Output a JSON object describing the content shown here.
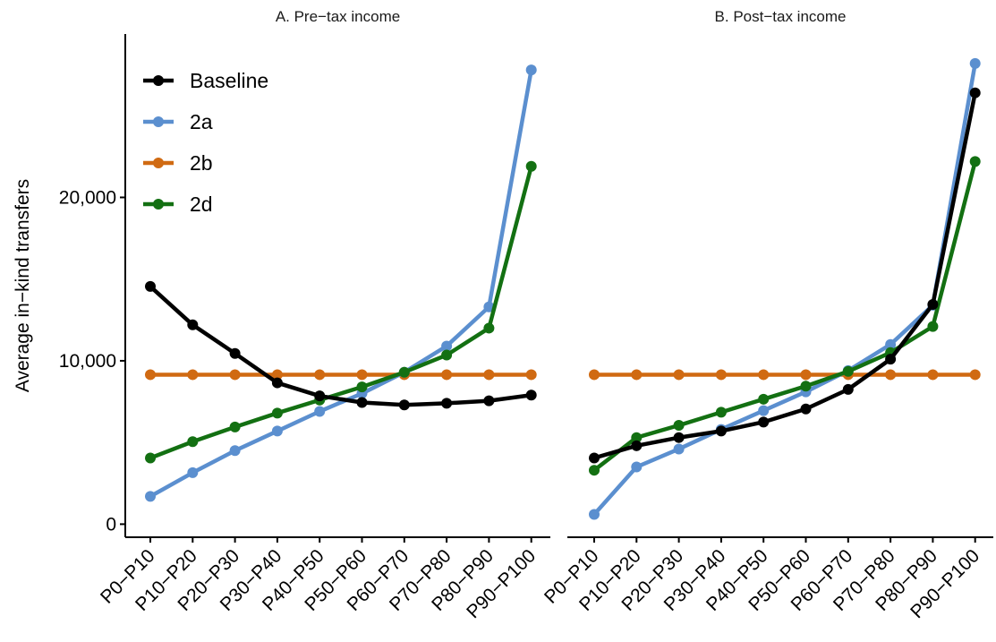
{
  "chart_data": {
    "type": "line",
    "ylabel": "Average in−kind transfers",
    "yticks": [
      0,
      10000,
      20000
    ],
    "ytick_labels": [
      "0",
      "10,000",
      "20,000"
    ],
    "ylim": [
      -800,
      30000
    ],
    "categories": [
      "P0−P10",
      "P10−P20",
      "P20−P30",
      "P30−P40",
      "P40−P50",
      "P50−P60",
      "P60−P70",
      "P70−P80",
      "P80−P90",
      "P90−P100"
    ],
    "legend": {
      "position": "top-left",
      "entries": [
        {
          "name": "Baseline",
          "color": "#000000"
        },
        {
          "name": "2a",
          "color": "#5b8fcf"
        },
        {
          "name": "2b",
          "color": "#d06a12"
        },
        {
          "name": "2d",
          "color": "#137012"
        }
      ]
    },
    "panels": [
      {
        "title": "A. Pre−tax income",
        "series": [
          {
            "name": "2b",
            "color": "#d06a12",
            "values": [
              9150,
              9150,
              9150,
              9150,
              9150,
              9150,
              9150,
              9150,
              9150,
              9150
            ]
          },
          {
            "name": "2a",
            "color": "#5b8fcf",
            "values": [
              1700,
              3150,
              4500,
              5700,
              6900,
              8000,
              9300,
              10900,
              13300,
              27800
            ]
          },
          {
            "name": "2d",
            "color": "#137012",
            "values": [
              4050,
              5050,
              5950,
              6800,
              7600,
              8400,
              9300,
              10350,
              12000,
              21900
            ]
          },
          {
            "name": "Baseline",
            "color": "#000000",
            "values": [
              14550,
              12200,
              10450,
              8650,
              7850,
              7450,
              7300,
              7400,
              7550,
              7900
            ]
          }
        ]
      },
      {
        "title": "B. Post−tax income",
        "series": [
          {
            "name": "2b",
            "color": "#d06a12",
            "values": [
              9150,
              9150,
              9150,
              9150,
              9150,
              9150,
              9150,
              9150,
              9150,
              9150
            ]
          },
          {
            "name": "2a",
            "color": "#5b8fcf",
            "values": [
              600,
              3500,
              4600,
              5800,
              6950,
              8100,
              9400,
              11000,
              13400,
              28200
            ]
          },
          {
            "name": "2d",
            "color": "#137012",
            "values": [
              3300,
              5300,
              6050,
              6850,
              7650,
              8450,
              9350,
              10500,
              12100,
              22200
            ]
          },
          {
            "name": "Baseline",
            "color": "#000000",
            "values": [
              4050,
              4800,
              5300,
              5700,
              6250,
              7050,
              8250,
              10100,
              13450,
              26400
            ]
          }
        ]
      }
    ]
  }
}
